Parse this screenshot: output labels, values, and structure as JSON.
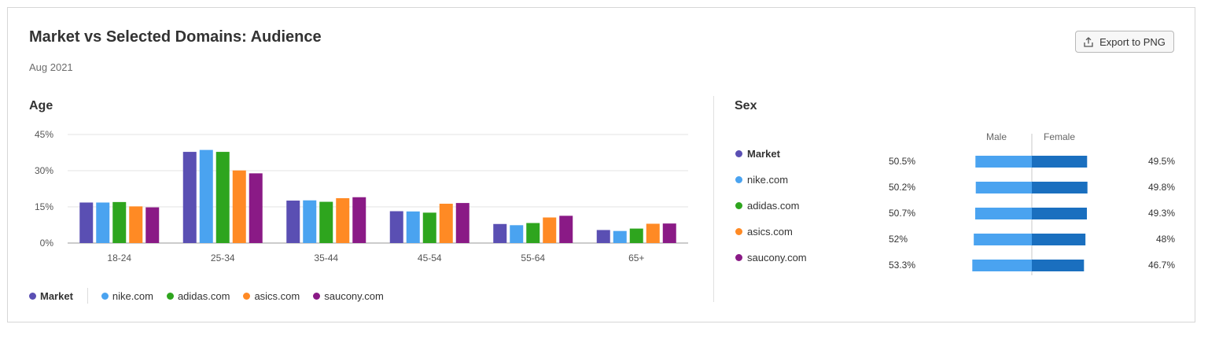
{
  "header": {
    "title": "Market vs Selected Domains: Audience",
    "date": "Aug 2021",
    "export_label": "Export to PNG"
  },
  "age_section": {
    "title": "Age"
  },
  "sex_section": {
    "title": "Sex",
    "male_label": "Male",
    "female_label": "Female"
  },
  "colors": {
    "Market": "#5a4fb3",
    "nike.com": "#4aa3f0",
    "adidas.com": "#2ea51e",
    "asics.com": "#ff8a24",
    "saucony.com": "#8a1a86",
    "male_bar": "#4aa3f0",
    "female_bar": "#1a6fbf"
  },
  "legend": [
    "Market",
    "nike.com",
    "adidas.com",
    "asics.com",
    "saucony.com"
  ],
  "chart_data": [
    {
      "type": "bar",
      "title": "Age",
      "categories": [
        "18-24",
        "25-34",
        "35-44",
        "45-54",
        "55-64",
        "65+"
      ],
      "yticks": [
        "0%",
        "15%",
        "30%",
        "45%"
      ],
      "ylim": [
        0,
        45
      ],
      "grid": true,
      "legend_position": "bottom-left",
      "series": [
        {
          "name": "Market",
          "values": [
            16.8,
            37.8,
            17.6,
            13.2,
            7.9,
            5.4
          ]
        },
        {
          "name": "nike.com",
          "values": [
            16.8,
            38.6,
            17.7,
            13.1,
            7.4,
            5.0
          ]
        },
        {
          "name": "adidas.com",
          "values": [
            17.0,
            37.8,
            17.1,
            12.6,
            8.3,
            6.0
          ]
        },
        {
          "name": "asics.com",
          "values": [
            15.2,
            30.1,
            18.6,
            16.3,
            10.6,
            8.0
          ]
        },
        {
          "name": "saucony.com",
          "values": [
            14.8,
            28.9,
            19.0,
            16.6,
            11.3,
            8.1
          ]
        }
      ]
    },
    {
      "type": "bar",
      "title": "Sex",
      "categories": [
        "Market",
        "nike.com",
        "adidas.com",
        "asics.com",
        "saucony.com"
      ],
      "series": [
        {
          "name": "Male",
          "values": [
            50.5,
            50.2,
            50.7,
            52,
            53.3
          ],
          "labels": [
            "50.5%",
            "50.2%",
            "50.7%",
            "52%",
            "53.3%"
          ]
        },
        {
          "name": "Female",
          "values": [
            49.5,
            49.8,
            49.3,
            48,
            46.7
          ],
          "labels": [
            "49.5%",
            "49.8%",
            "49.3%",
            "48%",
            "46.7%"
          ]
        }
      ]
    }
  ]
}
